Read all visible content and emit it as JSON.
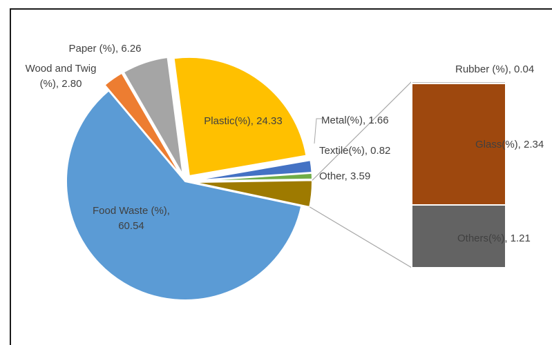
{
  "chart_data": {
    "type": "pie",
    "variant": "bar-of-pie",
    "slices": [
      {
        "label": "Food Waste (%)",
        "value": 60.54,
        "color": "#5b9bd5"
      },
      {
        "label": "Wood and Twig (%)",
        "value": 2.8,
        "color": "#ed7d31"
      },
      {
        "label": "Paper (%)",
        "value": 6.26,
        "color": "#a5a5a5"
      },
      {
        "label": "Plastic(%)",
        "value": 24.33,
        "color": "#ffc000"
      },
      {
        "label": "Metal(%)",
        "value": 1.66,
        "color": "#4472c4"
      },
      {
        "label": "Textile(%)",
        "value": 0.82,
        "color": "#70ad47"
      },
      {
        "label": "Other",
        "value": 3.59,
        "color": "#9e7a00"
      }
    ],
    "breakout": {
      "of": "Other",
      "items": [
        {
          "label": "Rubber (%)",
          "value": 0.04,
          "color": "#c0c0c0"
        },
        {
          "label": "Glass(%)",
          "value": 2.34,
          "color": "#9e480e"
        },
        {
          "label": "Others(%)",
          "value": 1.21,
          "color": "#636363"
        }
      ]
    },
    "data_labels": {
      "food": [
        "Food Waste (%),",
        "60.54"
      ],
      "wood": [
        "Wood and Twig",
        "(%), 2.80"
      ],
      "paper": "Paper (%), 6.26",
      "plastic": "Plastic(%), 24.33",
      "metal": "Metal(%), 1.66",
      "textile": "Textile(%), 0.82",
      "other": "Other, 3.59",
      "rubber": "Rubber (%), 0.04",
      "glass": "Glass(%), 2.34",
      "others": "Others(%), 1.21"
    }
  }
}
